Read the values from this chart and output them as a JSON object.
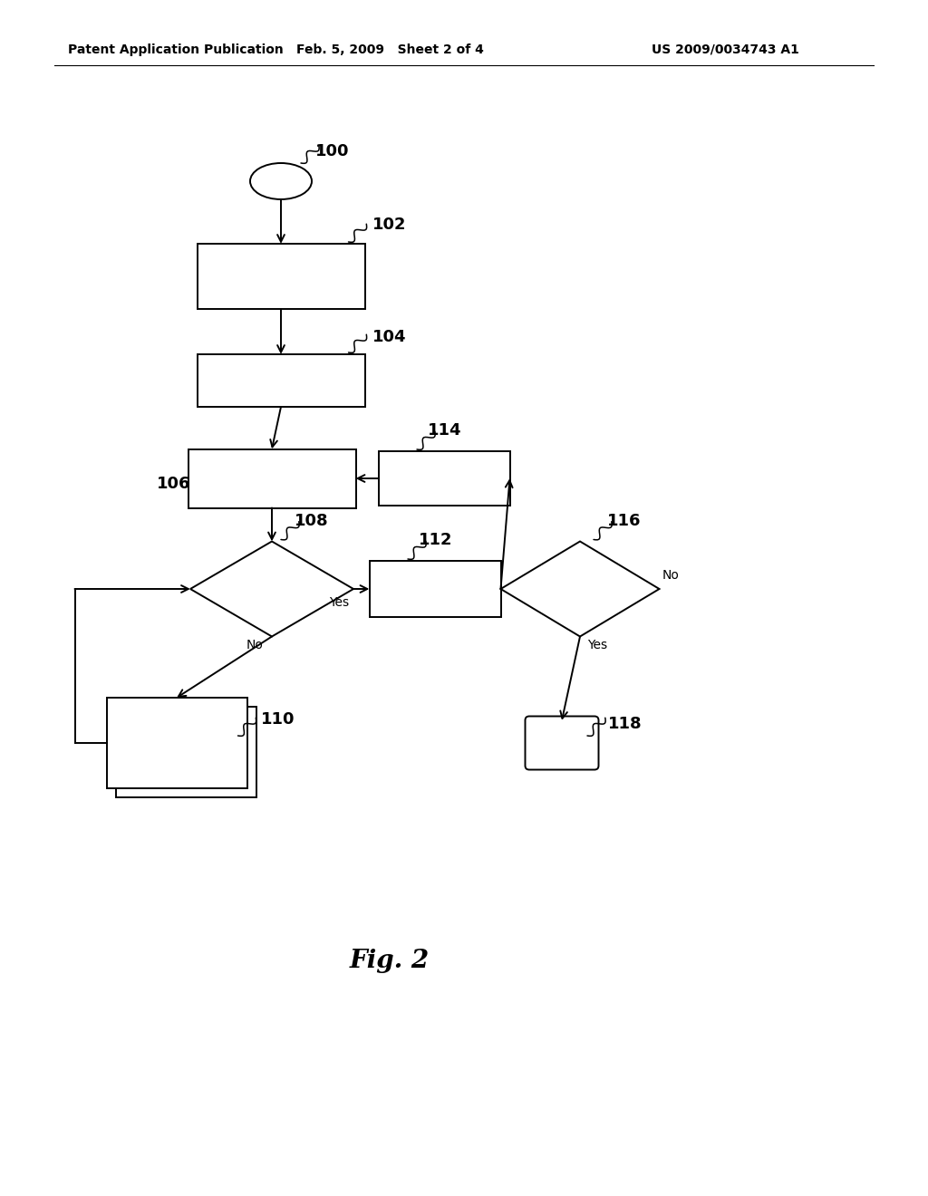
{
  "bg_color": "#ffffff",
  "header_left": "Patent Application Publication",
  "header_mid": "Feb. 5, 2009   Sheet 2 of 4",
  "header_right": "US 2009/0034743 A1",
  "fig_label": "Fig. 2",
  "header_fontsize": 10,
  "label_fontsize": 13,
  "fig_label_fontsize": 20,
  "lw": 1.4
}
